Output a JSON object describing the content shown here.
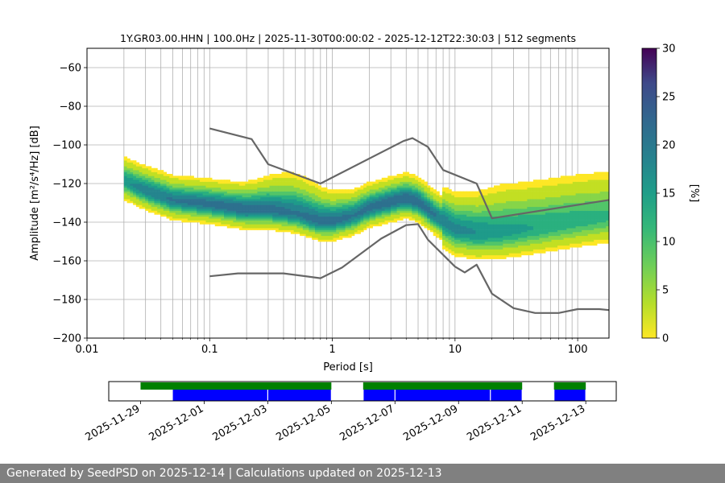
{
  "chart_data": [
    {
      "type": "heatmap",
      "title": "1Y.GR03.00.HHN | 100.0Hz | 2025-11-30T00:00:02 - 2025-12-12T22:30:03 | 512 segments",
      "xlabel": "Period [s]",
      "ylabel": "Amplitude [m²/s⁴/Hz] [dB]",
      "x_scale": "log",
      "xlim": [
        0.01,
        180
      ],
      "ylim": [
        -200,
        -50
      ],
      "x_ticks": [
        0.01,
        0.1,
        1,
        10,
        100
      ],
      "x_tick_labels": [
        "0.01",
        "0.1",
        "1",
        "10",
        "100"
      ],
      "y_ticks": [
        -200,
        -180,
        -160,
        -140,
        -120,
        -100,
        -80,
        -60
      ],
      "y_tick_labels": [
        "−200",
        "−180",
        "−160",
        "−140",
        "−120",
        "−100",
        "−80",
        "−60"
      ],
      "grid": true,
      "colorbar": {
        "label": "[%]",
        "min": 0,
        "max": 30,
        "ticks": [
          0,
          5,
          10,
          15,
          20,
          25,
          30
        ],
        "tick_labels": [
          "0",
          "5",
          "10",
          "15",
          "20",
          "25",
          "30"
        ],
        "colormap": "viridis"
      },
      "density_ridge": {
        "period": [
          0.02,
          0.03,
          0.05,
          0.1,
          0.2,
          0.3,
          0.5,
          0.8,
          1,
          1.5,
          2,
          3,
          4,
          5,
          6,
          8,
          10,
          15,
          20,
          30,
          50,
          100,
          180
        ],
        "mode_db": [
          -119,
          -124,
          -129,
          -131,
          -134,
          -134,
          -136,
          -140,
          -140,
          -137,
          -133,
          -130,
          -128,
          -130,
          -134,
          -140,
          -144,
          -146,
          -146,
          -145,
          -143,
          -140,
          -138
        ],
        "peak_percent": [
          14,
          17,
          18,
          19,
          20,
          19,
          18,
          19,
          19,
          18,
          19,
          20,
          20,
          20,
          19,
          17,
          16,
          15,
          14,
          13,
          12,
          11,
          10
        ]
      },
      "series": [
        {
          "name": "",
          "color": "#666666",
          "x": [
            0.1,
            0.22,
            0.3,
            0.8,
            3.8,
            4.5,
            6.0,
            8.0,
            15,
            20,
            180
          ],
          "y": [
            -91.5,
            -97,
            -110,
            -120,
            -98,
            -96.5,
            -101,
            -113,
            -120,
            -138,
            -128.5
          ]
        },
        {
          "name": "",
          "color": "#666666",
          "x": [
            0.1,
            0.17,
            0.4,
            0.8,
            1.2,
            2.5,
            4.0,
            5.0,
            6.0,
            10,
            12,
            15,
            20,
            30,
            45,
            70,
            100,
            150,
            180
          ],
          "y": [
            -168,
            -166.5,
            -166.5,
            -169,
            -163.5,
            -148.5,
            -141.5,
            -141,
            -149,
            -163,
            -166,
            -162,
            -177,
            -184.5,
            -187,
            -187,
            -185,
            -185,
            -185.5
          ]
        }
      ]
    },
    {
      "type": "bar",
      "xlabel": "",
      "ylabel": "",
      "x_start": "2025-11-28",
      "x_end": "2025-12-13 23:00",
      "x_tick_labels": [
        "2025-11-29",
        "2025-12-01",
        "2025-12-03",
        "2025-12-05",
        "2025-12-07",
        "2025-12-09",
        "2025-12-11",
        "2025-12-13"
      ],
      "series": [
        {
          "name": "",
          "color": "#008000",
          "intervals": [
            [
              "2025-11-29 00:00",
              "2025-12-05 00:00"
            ],
            [
              "2025-12-06 00:00",
              "2025-12-11 00:00"
            ],
            [
              "2025-12-12 00:00",
              "2025-12-13 00:00"
            ]
          ]
        },
        {
          "name": "",
          "color": "#0000ff",
          "intervals": [
            [
              "2025-11-30 00:00",
              "2025-12-03 00:00"
            ],
            [
              "2025-12-03 00:00",
              "2025-12-05 00:00"
            ],
            [
              "2025-12-06 00:00",
              "2025-12-07 00:00"
            ],
            [
              "2025-12-07 00:00",
              "2025-12-10 00:00"
            ],
            [
              "2025-12-10 00:00",
              "2025-12-11 00:00"
            ],
            [
              "2025-12-12 00:00",
              "2025-12-13 00:00"
            ]
          ]
        }
      ]
    }
  ],
  "footer": {
    "text": "Generated by SeedPSD on 2025-12-14 | Calculations updated on 2025-12-13"
  }
}
